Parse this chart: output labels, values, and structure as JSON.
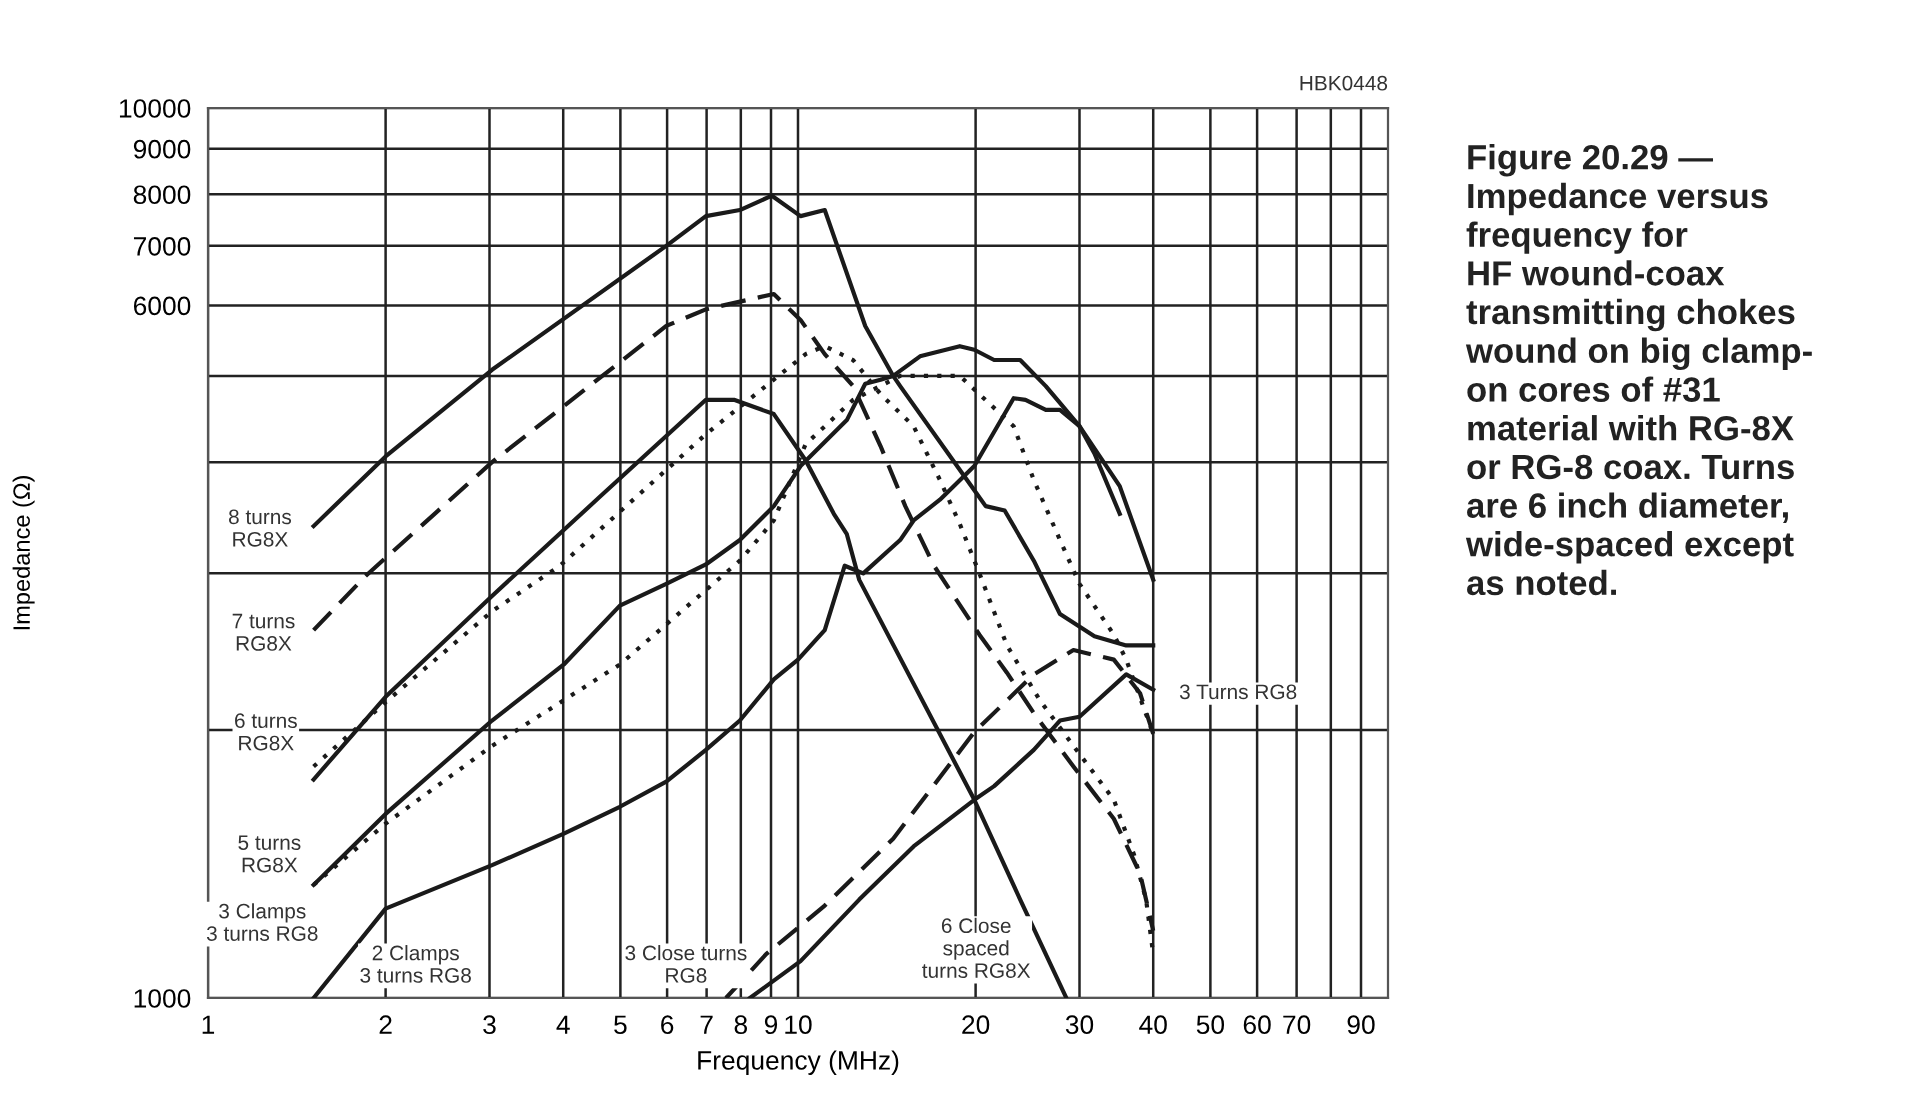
{
  "chart_data": {
    "type": "line",
    "title": "Figure 20.29 —\nImpedance versus\nfrequency for\nHF wound-coax\ntransmitting chokes\nwound on big clamp-\non cores of #31\nmaterial with RG-8X\nor RG-8 coax. Turns\nare 6 inch diameter,\nwide-spaced except\nas noted.",
    "xlabel": "Frequency (MHz)",
    "ylabel": "Impedance (Ω)",
    "log": "xy",
    "grid": true,
    "xlim": [
      1,
      100
    ],
    "ylim": [
      1000,
      10000
    ],
    "xticks": [
      1,
      2,
      3,
      4,
      5,
      6,
      7,
      8,
      9,
      10,
      20,
      30,
      40,
      50,
      60,
      70,
      {
        "value": 80,
        "label": null
      },
      90
    ],
    "yticks": [
      1000,
      {
        "value": 2000,
        "label": null
      },
      {
        "value": 3000,
        "label": null
      },
      {
        "value": 4000,
        "label": null
      },
      {
        "value": 5000,
        "label": null
      },
      6000,
      7000,
      8000,
      9000,
      10000
    ],
    "series": [
      {
        "color": "#1a1a1a",
        "line_style": "solid",
        "x": [
          1.51,
          2.0,
          3.03,
          5.98,
          6.98,
          7.97,
          9.03,
          10.1,
          11.1,
          13.0,
          14.5,
          14.9,
          19.9,
          20.8,
          22.4,
          25.1,
          27.8,
          31.8,
          36.0,
          40
        ],
        "values": [
          3390,
          4060,
          5080,
          7000,
          7560,
          7680,
          7970,
          7560,
          7680,
          5690,
          5000,
          4870,
          3720,
          3570,
          3530,
          3100,
          2700,
          2550,
          2490,
          2490
        ]
      },
      {
        "color": "#1a1a1a",
        "line_style": "dashed",
        "x": [
          1.51,
          1.85,
          3.03,
          5.98,
          6.98,
          9.1,
          10.1,
          11.1,
          12.4,
          13.8,
          15.2,
          17.0,
          20.3,
          22.6,
          25.1,
          29.3,
          34.3,
          38.0,
          40
        ],
        "values": [
          2590,
          2980,
          4000,
          5690,
          5940,
          6180,
          5780,
          5290,
          4870,
          4170,
          3570,
          3060,
          2560,
          2320,
          2090,
          1820,
          1590,
          1380,
          1190
        ]
      },
      {
        "color": "#1a1a1a",
        "line_style": "solid",
        "x": [
          1.51,
          2.0,
          3.03,
          4.6,
          6.98,
          7.79,
          9.1,
          10.3,
          11.5,
          12.1,
          12.7,
          19.9,
          23.8,
          28.5
        ],
        "values": [
          1760,
          2180,
          2830,
          3650,
          4700,
          4700,
          4530,
          4020,
          3500,
          3320,
          2950,
          1670,
          1290,
          1000
        ]
      },
      {
        "color": "#1a1a1a",
        "line_style": "dotted",
        "x": [
          1.51,
          2.0,
          3.03,
          3.95,
          6.98,
          10.3,
          11.1,
          12.4,
          13.8,
          15.7,
          17.4,
          18.8,
          20.3,
          22.6,
          25.7,
          29.3,
          34.3,
          37.1,
          38.9,
          40
        ],
        "values": [
          1820,
          2150,
          2720,
          3060,
          4300,
          5290,
          5400,
          5210,
          4770,
          4390,
          3820,
          3410,
          3000,
          2490,
          2160,
          1920,
          1670,
          1450,
          1290,
          1120
        ]
      },
      {
        "color": "#1a1a1a",
        "line_style": "solid",
        "x": [
          1.51,
          2.0,
          3.03,
          4.01,
          4.99,
          5.98,
          6.98,
          7.97,
          9.1,
          10.1,
          12.1,
          13.0,
          13.8,
          14.5,
          16.1,
          18.8,
          19.9,
          21.5,
          23.8,
          26.3,
          30.0,
          35.1,
          40
        ],
        "values": [
          1340,
          1610,
          2050,
          2370,
          2760,
          2920,
          3070,
          3270,
          3570,
          3960,
          4460,
          4900,
          4950,
          5000,
          5260,
          5400,
          5350,
          5210,
          5210,
          4870,
          4390,
          3760,
          2950
        ]
      },
      {
        "color": "#1a1a1a",
        "line_style": "dotted",
        "x": [
          1.51,
          2.0,
          3.03,
          4.99,
          7.97,
          9.1,
          10.3,
          12.4,
          14.9,
          18.8,
          23.2,
          25.1,
          27.8,
          30.0,
          34.3,
          36.0,
          40
        ],
        "values": [
          1340,
          1570,
          1920,
          2370,
          3100,
          3440,
          4190,
          4700,
          5000,
          5000,
          4390,
          3820,
          3270,
          2920,
          2560,
          2400,
          1980
        ]
      },
      {
        "color": "#1a1a1a",
        "line_style": "solid",
        "x": [
          1.51,
          2.0,
          3.03,
          4.01,
          4.99,
          5.98,
          6.98,
          7.97,
          9.1,
          10.0,
          11.1,
          12.0,
          12.9,
          14.9,
          15.7,
          17.4,
          19.9,
          23.2,
          24.3,
          26.3,
          27.8,
          30.0,
          31.8,
          35.1
        ],
        "values": [
          1000,
          1260,
          1410,
          1530,
          1640,
          1750,
          1900,
          2050,
          2280,
          2400,
          2590,
          3060,
          3000,
          3270,
          3440,
          3630,
          3960,
          4720,
          4700,
          4580,
          4580,
          4390,
          4090,
          3500
        ]
      },
      {
        "color": "#1a1a1a",
        "line_style": "solid",
        "x": [
          8.29,
          10.1,
          12.7,
          15.7,
          19.9,
          21.5,
          25.1,
          27.8,
          30.0,
          36.0,
          40
        ],
        "values": [
          1000,
          1100,
          1290,
          1480,
          1670,
          1730,
          1900,
          2050,
          2070,
          2310,
          2220
        ]
      },
      {
        "color": "#1a1a1a",
        "line_style": "dashed",
        "x": [
          7.55,
          8.83,
          11.1,
          14.5,
          19.9,
          25.1,
          29.3,
          34.3,
          38.0,
          40
        ],
        "values": [
          1000,
          1120,
          1270,
          1510,
          1990,
          2310,
          2460,
          2400,
          2200,
          1980
        ]
      }
    ],
    "annotations": [
      "HBK0448",
      "8 turns\nRG8X",
      "7 turns\nRG8X",
      "6 turns\nRG8X",
      "5 turns\nRG8X",
      "3 Clamps\n3 turns RG8",
      "2 Clamps\n3 turns RG8",
      "3 Close turns\nRG8",
      "6 Close\nspaced\nturns RG8X",
      "3 Turns RG8"
    ]
  }
}
